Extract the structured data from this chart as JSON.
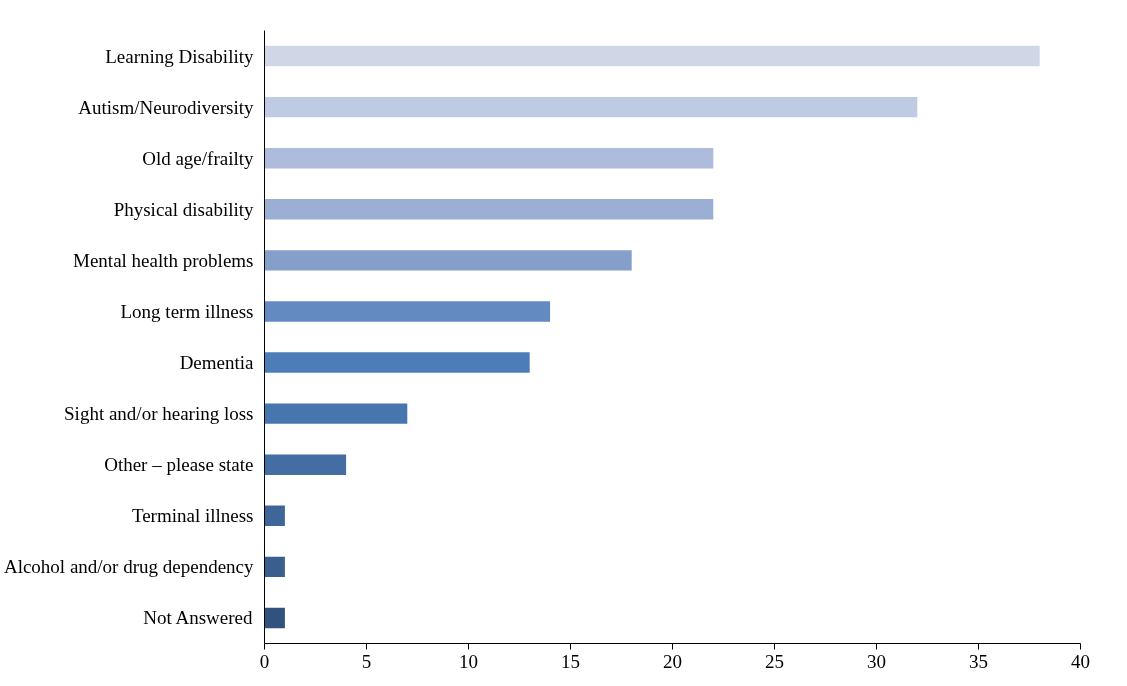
{
  "chart_data": {
    "type": "bar",
    "orientation": "horizontal",
    "categories": [
      "Learning Disability",
      "Autism/Neurodiversity",
      "Old age/frailty",
      "Physical disability",
      "Mental health problems",
      "Long term illness",
      "Dementia",
      "Sight and/or hearing loss",
      "Other – please state",
      "Terminal illness",
      "Alcohol and/or drug dependency",
      "Not Answered"
    ],
    "values": [
      38,
      32,
      22,
      22,
      18,
      14,
      13,
      7,
      4,
      1,
      1,
      1
    ],
    "colors": [
      "#cfd7e7",
      "#bfcbe2",
      "#acbcda",
      "#9aafd3",
      "#839fca",
      "#638ac1",
      "#4d7db8",
      "#4775ad",
      "#446ea3",
      "#3f6699",
      "#3a5e8e",
      "#32527e"
    ],
    "xlim": [
      0,
      40
    ],
    "xticks": [
      0,
      5,
      10,
      15,
      20,
      25,
      30,
      35,
      40
    ],
    "grid": false
  }
}
